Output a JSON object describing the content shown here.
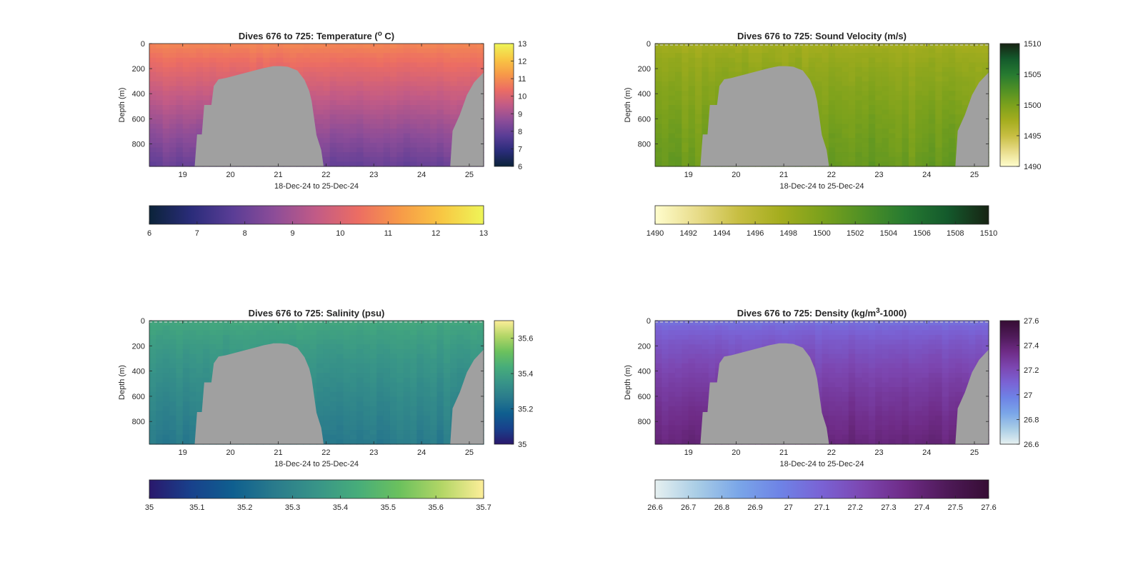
{
  "figure": {
    "background": "#ffffff",
    "seafloor_color": "#a0a0a0"
  },
  "chart_data": [
    {
      "id": "temperature",
      "type": "heatmap",
      "title_parts": [
        "Dives 676 to 725: Temperature (",
        "o",
        " C)"
      ],
      "title_sup_index": 1,
      "xlabel": "18-Dec-24 to 25-Dec-24",
      "ylabel": "Depth (m)",
      "xlim": [
        18.3,
        25.3
      ],
      "ylim": [
        0,
        980
      ],
      "y_reversed": true,
      "x_ticks": [
        19,
        20,
        21,
        22,
        23,
        24,
        25
      ],
      "y_ticks": [
        0,
        200,
        400,
        600,
        800
      ],
      "colormap": "thermal",
      "colormap_stops": [
        "#0b2339",
        "#2a2c7a",
        "#5a3d96",
        "#8d4d98",
        "#c25b86",
        "#ec6d63",
        "#f79a48",
        "#f8c743",
        "#eef558"
      ],
      "clim": [
        6,
        13
      ],
      "colorbar_ticks": [
        6,
        7,
        8,
        9,
        10,
        11,
        12,
        13
      ],
      "colorbar_ticks_horizontal": [
        6,
        7,
        8,
        9,
        10,
        11,
        12,
        13
      ],
      "surface_value": 10.9,
      "deep_value": 8.0,
      "profile_shape": 1.1,
      "noise": 0.25,
      "surface_line": false
    },
    {
      "id": "sound_velocity",
      "type": "heatmap",
      "title_parts": [
        "Dives 676 to 725: Sound Velocity (m/s)"
      ],
      "xlabel": "18-Dec-24 to 25-Dec-24",
      "ylabel": "Depth (m)",
      "xlim": [
        18.3,
        25.3
      ],
      "ylim": [
        0,
        980
      ],
      "y_reversed": true,
      "x_ticks": [
        19,
        20,
        21,
        22,
        23,
        24,
        25
      ],
      "y_ticks": [
        0,
        200,
        400,
        600,
        800
      ],
      "colormap": "speed",
      "colormap_stops": [
        "#fffdcd",
        "#e8dc8a",
        "#c7be42",
        "#a4ad1e",
        "#7ba11c",
        "#4f9025",
        "#267a31",
        "#145a2c",
        "#172313"
      ],
      "clim": [
        1490,
        1510
      ],
      "colorbar_ticks": [
        1490,
        1495,
        1500,
        1505,
        1510
      ],
      "colorbar_ticks_horizontal": [
        1490,
        1492,
        1494,
        1496,
        1498,
        1500,
        1502,
        1504,
        1506,
        1508,
        1510
      ],
      "surface_value": 1497.2,
      "deep_value": 1501.0,
      "profile_shape": 1.6,
      "noise": 1.2,
      "surface_line": true
    },
    {
      "id": "salinity",
      "type": "heatmap",
      "title_parts": [
        "Dives 676 to 725: Salinity (psu)"
      ],
      "xlabel": "18-Dec-24 to 25-Dec-24",
      "ylabel": "Depth (m)",
      "xlim": [
        18.3,
        25.3
      ],
      "ylim": [
        0,
        980
      ],
      "y_reversed": true,
      "x_ticks": [
        19,
        20,
        21,
        22,
        23,
        24,
        25
      ],
      "y_ticks": [
        0,
        200,
        400,
        600,
        800
      ],
      "colormap": "haline",
      "colormap_stops": [
        "#2a186c",
        "#18418c",
        "#0f5f8f",
        "#2a7b8c",
        "#389488",
        "#47ad7a",
        "#6cc15d",
        "#b3d666",
        "#fdee99"
      ],
      "clim": [
        35,
        35.7
      ],
      "colorbar_ticks": [
        35,
        35.2,
        35.4,
        35.6
      ],
      "colorbar_ticks_horizontal": [
        35,
        35.1,
        35.2,
        35.3,
        35.4,
        35.5,
        35.6,
        35.7
      ],
      "surface_value": 35.42,
      "deep_value": 35.26,
      "profile_shape": 1.3,
      "noise": 0.03,
      "surface_line": true
    },
    {
      "id": "density",
      "type": "heatmap",
      "title_parts": [
        "Dives 676 to 725: Density (kg/m",
        "3",
        "-1000)"
      ],
      "title_sup_index": 1,
      "xlabel": "18-Dec-24 to 25-Dec-24",
      "ylabel": "Depth (m)",
      "xlim": [
        18.3,
        25.3
      ],
      "ylim": [
        0,
        980
      ],
      "y_reversed": true,
      "x_ticks": [
        19,
        20,
        21,
        22,
        23,
        24,
        25
      ],
      "y_ticks": [
        0,
        200,
        400,
        600,
        800
      ],
      "colormap": "dense",
      "colormap_stops": [
        "#e6f0f0",
        "#a9cde6",
        "#7aa6e8",
        "#6e83e6",
        "#7a62d4",
        "#7c46b0",
        "#6e2b86",
        "#4e1a58",
        "#360d34"
      ],
      "clim": [
        26.6,
        27.6
      ],
      "colorbar_ticks": [
        26.6,
        26.8,
        27,
        27.2,
        27.4,
        27.6
      ],
      "colorbar_ticks_horizontal": [
        26.6,
        26.7,
        26.8,
        26.9,
        27,
        27.1,
        27.2,
        27.3,
        27.4,
        27.5,
        27.6
      ],
      "surface_value": 27.02,
      "deep_value": 27.38,
      "profile_shape": 1.6,
      "noise": 0.04,
      "surface_line": true
    }
  ],
  "seafloor_profile": {
    "x": [
      18.3,
      19.28,
      19.29,
      19.44,
      19.45,
      19.6,
      19.61,
      19.75,
      19.9,
      20.1,
      20.3,
      20.5,
      20.7,
      20.9,
      21.05,
      21.2,
      21.4,
      21.55,
      21.65,
      21.7,
      21.8,
      21.9,
      21.95,
      22.0,
      24.5,
      24.6,
      24.61,
      24.8,
      24.95,
      25.1,
      25.3
    ],
    "depth": [
      980,
      980,
      725,
      725,
      490,
      490,
      360,
      285,
      275,
      255,
      235,
      215,
      195,
      180,
      180,
      185,
      215,
      290,
      380,
      460,
      730,
      850,
      980,
      980,
      980,
      980,
      730,
      570,
      410,
      310,
      230
    ]
  }
}
